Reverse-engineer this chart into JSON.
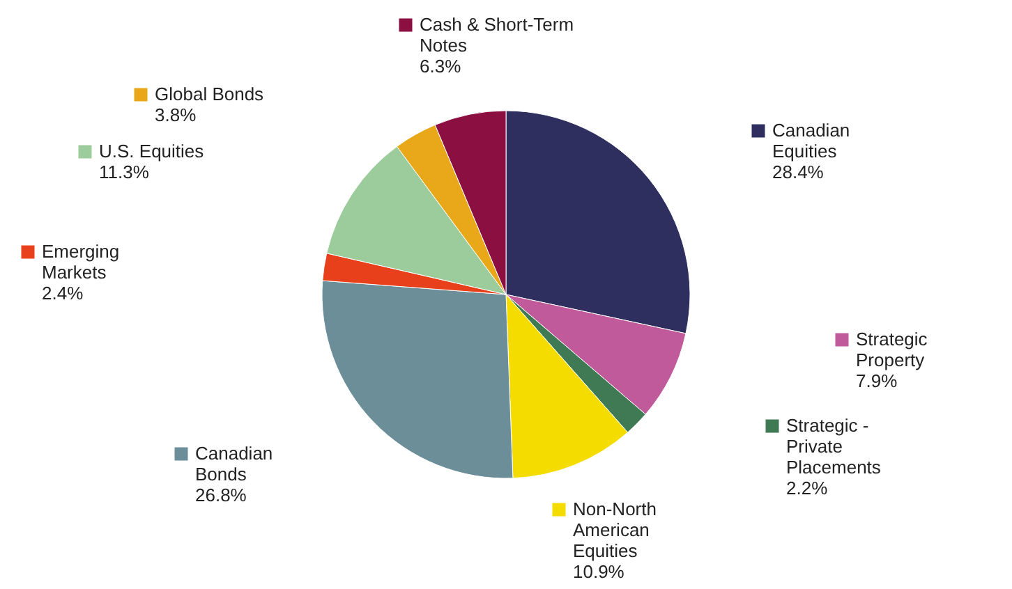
{
  "chart_data": {
    "type": "pie",
    "categories": [
      "Canadian Equities",
      "Strategic Property",
      "Strategic - Private Placements",
      "Non-North American Equities",
      "Canadian Bonds",
      "Emerging Markets",
      "U.S. Equities",
      "Global Bonds",
      "Cash & Short-Term Notes"
    ],
    "values": [
      28.4,
      7.9,
      2.2,
      10.9,
      26.8,
      2.4,
      11.3,
      3.8,
      6.3
    ],
    "value_labels": [
      "28.4%",
      "7.9%",
      "2.2%",
      "10.9%",
      "26.8%",
      "2.4%",
      "11.3%",
      "3.8%",
      "6.3%"
    ],
    "colors": [
      "#2e2f5e",
      "#c05a9a",
      "#3f7a55",
      "#f5dc00",
      "#6b8e99",
      "#e8401a",
      "#9ccc9c",
      "#e8a81a",
      "#8b0f40"
    ],
    "legend": "top left"
  }
}
